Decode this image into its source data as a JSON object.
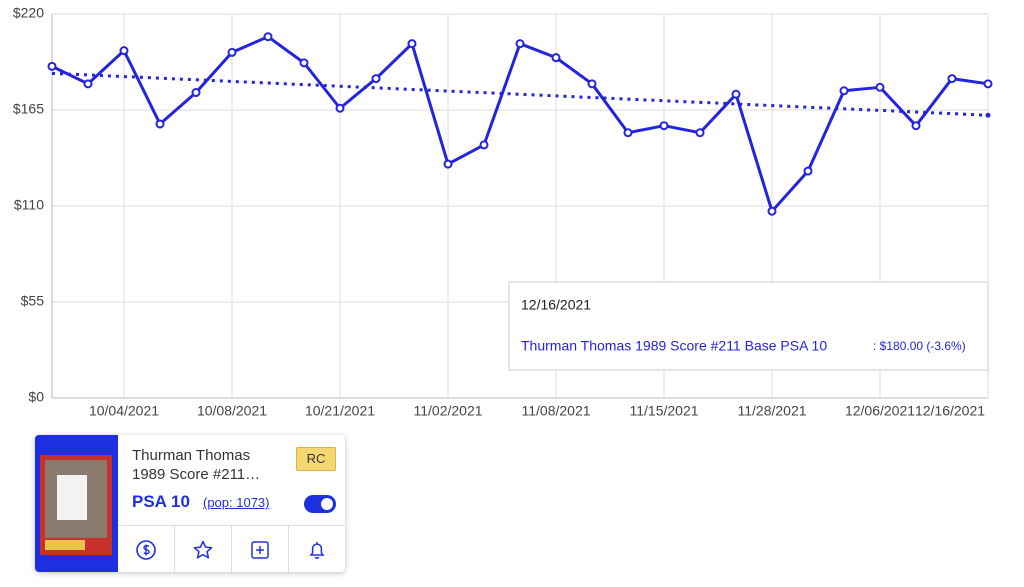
{
  "chart_data": {
    "type": "line",
    "categories": [
      null,
      null,
      "10/04/2021",
      null,
      null,
      "10/08/2021",
      null,
      null,
      "10/21/2021",
      null,
      null,
      "11/02/2021",
      null,
      null,
      "11/08/2021",
      null,
      null,
      "11/15/2021",
      null,
      null,
      "11/28/2021",
      null,
      null,
      "12/06/2021",
      null,
      null,
      "12/16/2021"
    ],
    "series": [
      {
        "name": "Thurman Thomas 1989 Score #211 Base PSA 10",
        "color": "#2424dd",
        "values": [
          190,
          180,
          199,
          157,
          175,
          198,
          207,
          192,
          166,
          183,
          203,
          134,
          145,
          203,
          195,
          180,
          152,
          156,
          152,
          174,
          107,
          130,
          176,
          178,
          156,
          183,
          180
        ]
      }
    ],
    "trend": {
      "values": [
        186,
        162
      ],
      "color": "#2424dd"
    },
    "ylim": [
      0,
      220
    ],
    "yticks": [
      {
        "value": 0,
        "label": "$0"
      },
      {
        "value": 55,
        "label": "$55"
      },
      {
        "value": 110,
        "label": "$110"
      },
      {
        "value": 165,
        "label": "$165"
      },
      {
        "value": 220,
        "label": "$220"
      }
    ],
    "grid": true,
    "tooltip": {
      "date": "12/16/2021",
      "value_text": ": $180.00 (-3.6%)"
    }
  },
  "card": {
    "name": "Thurman Thomas",
    "set": "1989 Score #211…",
    "badge": "RC",
    "grade": "PSA 10",
    "pop": "(pop: 1073)"
  }
}
